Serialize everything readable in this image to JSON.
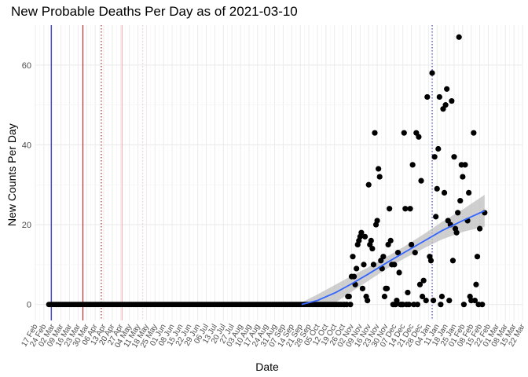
{
  "chart_data": {
    "type": "scatter",
    "title": "New Probable Deaths Per Day as of 2021-03-10",
    "xlabel": "Date",
    "ylabel": "New Counts Per Day",
    "xlim": [
      "2020-02-17",
      "2021-03-22"
    ],
    "ylim": [
      -4,
      70
    ],
    "y_ticks": [
      0,
      20,
      40,
      60
    ],
    "x_tick_labels": [
      "17 Feb",
      "24 Feb",
      "02 Mar",
      "09 Mar",
      "16 Mar",
      "23 Mar",
      "30 Mar",
      "06 Apr",
      "13 Apr",
      "20 Apr",
      "27 Apr",
      "04 May",
      "11 May",
      "18 May",
      "25 May",
      "01 Jun",
      "08 Jun",
      "15 Jun",
      "22 Jun",
      "29 Jun",
      "06 Jul",
      "13 Jul",
      "20 Jul",
      "27 Jul",
      "03 Aug",
      "10 Aug",
      "17 Aug",
      "24 Aug",
      "31 Aug",
      "07 Sep",
      "14 Sep",
      "21 Sep",
      "28 Sep",
      "05 Oct",
      "12 Oct",
      "19 Oct",
      "26 Oct",
      "02 Nov",
      "09 Nov",
      "16 Nov",
      "23 Nov",
      "30 Nov",
      "07 Dec",
      "14 Dec",
      "21 Dec",
      "28 Dec",
      "04 Jan",
      "11 Jan",
      "18 Jan",
      "25 Jan",
      "01 Feb",
      "08 Feb",
      "15 Feb",
      "22 Feb",
      "01 Mar",
      "08 Mar",
      "15 Mar",
      "22 Mar"
    ],
    "grid": true,
    "zero_run": {
      "start": "2020-02-28",
      "end": "2020-10-25",
      "value": 0
    },
    "points": [
      [
        "2020-10-27",
        0
      ],
      [
        "2020-10-29",
        0
      ],
      [
        "2020-10-30",
        2
      ],
      [
        "2020-10-31",
        2
      ],
      [
        "2020-11-01",
        0
      ],
      [
        "2020-11-02",
        7
      ],
      [
        "2020-11-03",
        12
      ],
      [
        "2020-11-04",
        7
      ],
      [
        "2020-11-05",
        5
      ],
      [
        "2020-11-06",
        9
      ],
      [
        "2020-11-07",
        15
      ],
      [
        "2020-11-08",
        16
      ],
      [
        "2020-11-09",
        17
      ],
      [
        "2020-11-10",
        18
      ],
      [
        "2020-11-11",
        4
      ],
      [
        "2020-11-12",
        10
      ],
      [
        "2020-11-13",
        17
      ],
      [
        "2020-11-14",
        2
      ],
      [
        "2020-11-15",
        1
      ],
      [
        "2020-11-16",
        30
      ],
      [
        "2020-11-17",
        15
      ],
      [
        "2020-11-18",
        16
      ],
      [
        "2020-11-19",
        14
      ],
      [
        "2020-11-20",
        10
      ],
      [
        "2020-11-21",
        43
      ],
      [
        "2020-11-22",
        20
      ],
      [
        "2020-11-23",
        21
      ],
      [
        "2020-11-24",
        34
      ],
      [
        "2020-11-25",
        32
      ],
      [
        "2020-11-26",
        11
      ],
      [
        "2020-11-27",
        9
      ],
      [
        "2020-11-28",
        12
      ],
      [
        "2020-11-29",
        2
      ],
      [
        "2020-11-30",
        4
      ],
      [
        "2020-12-01",
        4
      ],
      [
        "2020-12-02",
        15
      ],
      [
        "2020-12-03",
        24
      ],
      [
        "2020-12-04",
        16
      ],
      [
        "2020-12-05",
        10
      ],
      [
        "2020-12-06",
        0
      ],
      [
        "2020-12-07",
        10
      ],
      [
        "2020-12-08",
        0
      ],
      [
        "2020-12-09",
        1
      ],
      [
        "2020-12-10",
        13
      ],
      [
        "2020-12-11",
        8
      ],
      [
        "2020-12-12",
        0
      ],
      [
        "2020-12-13",
        0
      ],
      [
        "2020-12-14",
        0
      ],
      [
        "2020-12-15",
        43
      ],
      [
        "2020-12-16",
        24
      ],
      [
        "2020-12-17",
        0
      ],
      [
        "2020-12-18",
        3
      ],
      [
        "2020-12-19",
        0
      ],
      [
        "2020-12-20",
        24
      ],
      [
        "2020-12-21",
        15
      ],
      [
        "2020-12-22",
        35
      ],
      [
        "2020-12-23",
        0
      ],
      [
        "2020-12-24",
        13
      ],
      [
        "2020-12-25",
        43
      ],
      [
        "2020-12-26",
        0
      ],
      [
        "2020-12-27",
        42
      ],
      [
        "2020-12-28",
        5
      ],
      [
        "2020-12-29",
        31
      ],
      [
        "2020-12-30",
        2
      ],
      [
        "2020-12-31",
        6
      ],
      [
        "2021-01-02",
        1
      ],
      [
        "2021-01-03",
        52
      ],
      [
        "2021-01-05",
        12
      ],
      [
        "2021-01-06",
        11
      ],
      [
        "2021-01-07",
        58
      ],
      [
        "2021-01-08",
        1
      ],
      [
        "2021-01-09",
        37
      ],
      [
        "2021-01-10",
        22
      ],
      [
        "2021-01-11",
        29
      ],
      [
        "2021-01-12",
        39
      ],
      [
        "2021-01-13",
        52
      ],
      [
        "2021-01-14",
        0
      ],
      [
        "2021-01-15",
        2
      ],
      [
        "2021-01-16",
        49
      ],
      [
        "2021-01-17",
        28
      ],
      [
        "2021-01-18",
        50
      ],
      [
        "2021-01-19",
        54
      ],
      [
        "2021-01-20",
        21
      ],
      [
        "2021-01-21",
        1
      ],
      [
        "2021-01-22",
        20
      ],
      [
        "2021-01-23",
        51
      ],
      [
        "2021-01-24",
        11
      ],
      [
        "2021-01-25",
        37
      ],
      [
        "2021-01-26",
        19
      ],
      [
        "2021-01-27",
        18
      ],
      [
        "2021-01-28",
        23
      ],
      [
        "2021-01-29",
        67
      ],
      [
        "2021-01-30",
        26
      ],
      [
        "2021-01-31",
        35
      ],
      [
        "2021-02-01",
        32
      ],
      [
        "2021-02-02",
        0
      ],
      [
        "2021-02-03",
        35
      ],
      [
        "2021-02-05",
        21
      ],
      [
        "2021-02-06",
        28
      ],
      [
        "2021-02-07",
        2
      ],
      [
        "2021-02-08",
        1
      ],
      [
        "2021-02-10",
        43
      ],
      [
        "2021-02-11",
        1
      ],
      [
        "2021-02-12",
        5
      ],
      [
        "2021-02-13",
        12
      ],
      [
        "2021-02-14",
        0
      ],
      [
        "2021-02-15",
        19
      ],
      [
        "2021-02-17",
        0
      ],
      [
        "2021-02-19",
        23
      ]
    ],
    "trend": {
      "points": [
        [
          "2020-09-22",
          0
        ],
        [
          "2020-10-05",
          1
        ],
        [
          "2020-10-20",
          3
        ],
        [
          "2020-11-01",
          5
        ],
        [
          "2020-11-15",
          7.5
        ],
        [
          "2020-12-01",
          10.5
        ],
        [
          "2020-12-15",
          13
        ],
        [
          "2021-01-01",
          16
        ],
        [
          "2021-01-15",
          18.5
        ],
        [
          "2021-02-01",
          21
        ],
        [
          "2021-02-19",
          23.5
        ]
      ],
      "band": [
        [
          "2020-09-22",
          0,
          0.5
        ],
        [
          "2020-10-05",
          -0.5,
          2.5
        ],
        [
          "2020-10-20",
          0.5,
          5
        ],
        [
          "2020-11-01",
          3,
          7
        ],
        [
          "2020-11-15",
          5.8,
          9.2
        ],
        [
          "2020-12-01",
          9,
          12
        ],
        [
          "2020-12-15",
          11.5,
          14.5
        ],
        [
          "2021-01-01",
          14.2,
          17.8
        ],
        [
          "2021-01-15",
          16.3,
          20.7
        ],
        [
          "2021-02-01",
          18.2,
          23.8
        ],
        [
          "2021-02-19",
          19.5,
          27.5
        ]
      ],
      "color": "#3366FF",
      "band_color": "#bfbfbf"
    },
    "reference_lines": [
      {
        "date": "2020-03-01",
        "color": "#00008B",
        "style": "solid"
      },
      {
        "date": "2020-03-27",
        "color": "#CC0000",
        "style": "solid"
      },
      {
        "date": "2020-04-11",
        "color": "#8B0000",
        "style": "dotted"
      },
      {
        "date": "2020-04-28",
        "color": "#F4A6A6",
        "style": "solid"
      },
      {
        "date": "2020-05-15",
        "color": "#E8C8C8",
        "style": "dotted"
      },
      {
        "date": "2021-01-07",
        "color": "#1C1CCC",
        "style": "dotted"
      }
    ],
    "point_color": "#000000"
  }
}
